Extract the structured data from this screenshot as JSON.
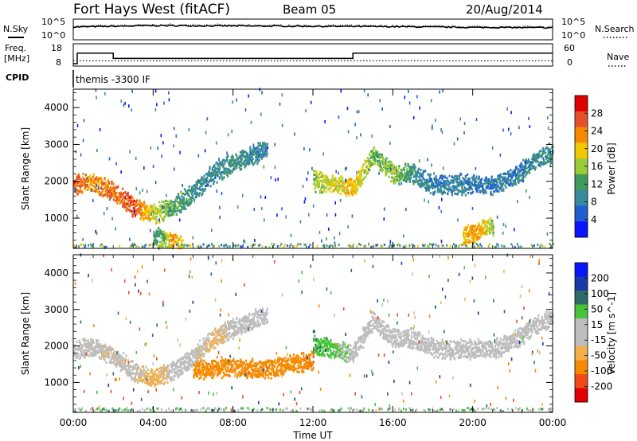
{
  "header": {
    "station": "Fort Hays West (fitACF)",
    "beam": "Beam 05",
    "date": "20/Aug/2014"
  },
  "noise_panel": {
    "left_label": "N.Sky",
    "left_ticks": [
      "10^5",
      "10^0"
    ],
    "right_label": "N.Search",
    "right_ticks": [
      "10^5",
      "10^0"
    ]
  },
  "freq_panel": {
    "left_label_1": "Freq.",
    "left_label_2": "[MHz]",
    "left_ticks": [
      "18",
      "8"
    ],
    "right_label": "Nave",
    "right_ticks": [
      "60",
      "0"
    ],
    "cpid_label": "CPID",
    "cpid_text": "themis -3300 IF"
  },
  "colors": {
    "power_scale": [
      "#0a14ff",
      "#1f5fd2",
      "#3a8a9e",
      "#3f9a5c",
      "#9acc3a",
      "#f2c800",
      "#f58a00",
      "#e4502a",
      "#e00000"
    ],
    "velocity_scale": [
      "#e00000",
      "#f04a1a",
      "#f58a00",
      "#f2b04a",
      "#bdbdbd",
      "#bdbdbd",
      "#45c43a",
      "#2e6a6a",
      "#1a3aa8",
      "#0a14ff"
    ]
  },
  "chart_data": [
    {
      "type": "line",
      "title": "N.Sky / N.Search",
      "x": [
        "00:00",
        "04:00",
        "08:00",
        "12:00",
        "16:00",
        "20:00",
        "00:00"
      ],
      "ylim_log10": [
        0,
        5
      ],
      "series": [
        {
          "values_log10": [
            3.2,
            3.6,
            3.5,
            3.4,
            3.3,
            3.1,
            3.0
          ]
        }
      ]
    },
    {
      "type": "line",
      "title": "Freq. / Nave",
      "x_hours": [
        0,
        0.2,
        2.0,
        14.0,
        24.0
      ],
      "freq_mhz": [
        8,
        14,
        11,
        14,
        14
      ],
      "nave_ylim": [
        0,
        60
      ],
      "nave_values": [
        10,
        10,
        10,
        10,
        10
      ],
      "ylim": [
        8,
        18
      ]
    },
    {
      "type": "heatmap",
      "title": "Power",
      "ylabel": "Slant Range [km]",
      "colorbar_label": "Power [dB]",
      "colorbar_ticks": [
        4,
        8,
        12,
        16,
        20,
        24,
        28
      ],
      "ylim": [
        180,
        4500
      ],
      "y_ticks": [
        1000,
        2000,
        3000,
        4000
      ],
      "x_ticks": [
        "00:00",
        "04:00",
        "08:00",
        "12:00",
        "16:00",
        "20:00",
        "00:00"
      ],
      "features": [
        {
          "label": "band",
          "hours": [
            0.0,
            1.0,
            2.0,
            3.0,
            4.0,
            5.0,
            6.0,
            7.0,
            8.0,
            9.0,
            9.7
          ],
          "range_km": [
            1900,
            1950,
            1700,
            1300,
            1100,
            1300,
            1700,
            2200,
            2500,
            2700,
            2900
          ],
          "power_db": [
            26,
            22,
            24,
            26,
            18,
            12,
            10,
            9,
            10,
            9,
            8
          ]
        },
        {
          "label": "band",
          "hours": [
            12.0,
            13.0,
            14.0,
            15.0,
            16.0,
            17.0,
            18.0,
            19.0,
            20.0,
            21.0,
            22.0,
            23.0,
            24.0
          ],
          "range_km": [
            2000,
            1900,
            1800,
            2700,
            2200,
            2200,
            1900,
            1900,
            1900,
            1900,
            2100,
            2500,
            2800
          ],
          "power_db": [
            16,
            18,
            20,
            14,
            16,
            10,
            8,
            8,
            8,
            8,
            8,
            9,
            9
          ]
        },
        {
          "label": "band",
          "hours": [
            4.0,
            4.5,
            5.0,
            5.5
          ],
          "range_km": [
            500,
            400,
            300,
            200
          ],
          "power_db": [
            10,
            14,
            22,
            18
          ]
        },
        {
          "label": "band",
          "hours": [
            19.5,
            20.0,
            20.5,
            21.0
          ],
          "range_km": [
            500,
            600,
            700,
            800
          ],
          "power_db": [
            20,
            22,
            20,
            14
          ]
        }
      ]
    },
    {
      "type": "heatmap",
      "title": "Velocity",
      "ylabel": "Slant Range [km]",
      "xlabel": "Time UT",
      "colorbar_label": "Velocity [m s^-1]",
      "colorbar_ticks": [
        200,
        100,
        50,
        15,
        -15,
        -50,
        -100,
        -200
      ],
      "ylim": [
        180,
        4500
      ],
      "y_ticks": [
        1000,
        2000,
        3000,
        4000
      ],
      "x_ticks": [
        "00:00",
        "04:00",
        "08:00",
        "12:00",
        "16:00",
        "20:00",
        "00:00"
      ],
      "features": [
        {
          "label": "band",
          "hours": [
            0.0,
            1.0,
            2.0,
            3.0,
            4.0,
            5.0,
            6.0,
            7.0,
            8.0,
            9.0,
            9.7
          ],
          "range_km": [
            1900,
            1950,
            1700,
            1300,
            1100,
            1300,
            1700,
            2200,
            2500,
            2700,
            2900
          ],
          "velocity_ms": [
            0,
            0,
            -5,
            0,
            -30,
            0,
            0,
            -20,
            0,
            0,
            0
          ]
        },
        {
          "label": "band",
          "hours": [
            6.0,
            7.0,
            8.0,
            9.0,
            10.0,
            11.0,
            12.0
          ],
          "range_km": [
            1300,
            1400,
            1400,
            1350,
            1400,
            1500,
            1600
          ],
          "velocity_ms": [
            -70,
            -70,
            -60,
            -60,
            -70,
            -80,
            -90
          ]
        },
        {
          "label": "band",
          "hours": [
            12.0,
            13.0,
            14.0,
            15.0,
            16.0,
            17.0,
            18.0,
            19.0,
            20.0,
            21.0,
            22.0,
            23.0,
            24.0
          ],
          "range_km": [
            2000,
            1900,
            1800,
            2700,
            2200,
            2200,
            1900,
            1900,
            1900,
            1900,
            2100,
            2500,
            2800
          ],
          "velocity_ms": [
            40,
            30,
            0,
            0,
            0,
            0,
            0,
            0,
            0,
            0,
            0,
            0,
            0
          ]
        }
      ]
    }
  ]
}
